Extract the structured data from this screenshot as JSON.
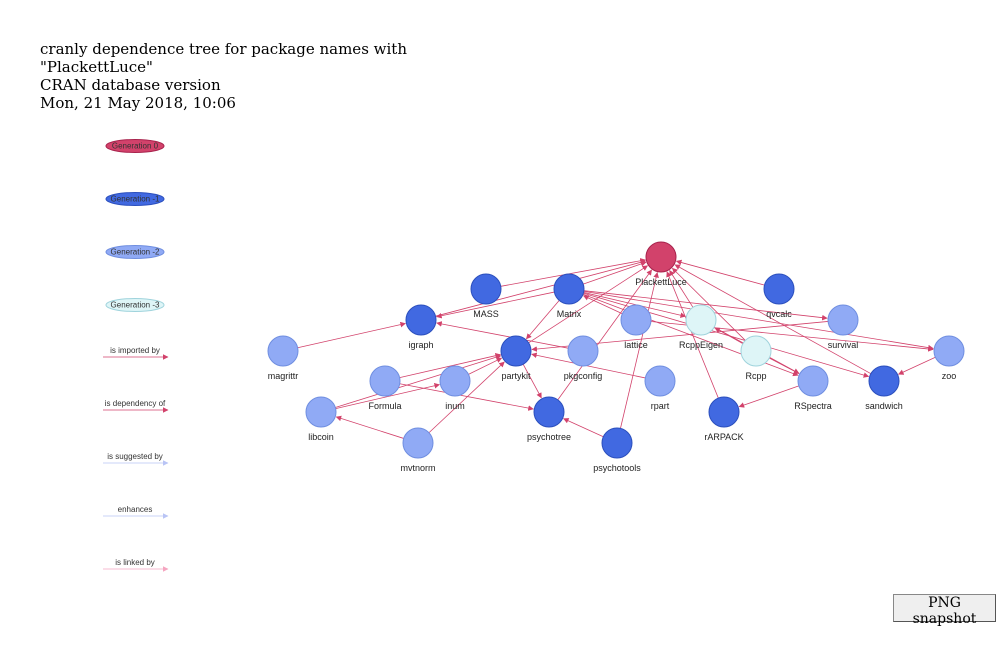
{
  "title": {
    "line1": "cranly dependence tree for package names with",
    "line2": "\"PlackettLuce\"",
    "line3": "CRAN database version",
    "line4": "Mon, 21 May 2018, 10:06"
  },
  "colors": {
    "generation_0": "#d2426b",
    "generation_1": "#4169e1",
    "generation_2": "#90aaf5",
    "generation_3": "#def5f7",
    "imported_by": "#d2426b",
    "dependency_of": "#d2426b",
    "suggested_by": "#b9c4f5",
    "enhances": "#b9c4f5",
    "linked_by": "#f5a5c0"
  },
  "legend": {
    "nodes": [
      {
        "label": "Generation 0",
        "generation": 0
      },
      {
        "label": "Generation -1",
        "generation": 1
      },
      {
        "label": "Generation -2",
        "generation": 2
      },
      {
        "label": "Generation -3",
        "generation": 3
      }
    ],
    "edges": [
      {
        "label": "is imported by",
        "type": "imported_by"
      },
      {
        "label": "is dependency of",
        "type": "dependency_of"
      },
      {
        "label": "is suggested by",
        "type": "suggested_by"
      },
      {
        "label": "enhances",
        "type": "enhances"
      },
      {
        "label": "is linked by",
        "type": "linked_by"
      }
    ]
  },
  "nodes": [
    {
      "id": "PlackettLuce",
      "label": "PlackettLuce",
      "generation": 0
    },
    {
      "id": "MASS",
      "label": "MASS",
      "generation": 1
    },
    {
      "id": "Matrix",
      "label": "Matrix",
      "generation": 1
    },
    {
      "id": "qvcalc",
      "label": "qvcalc",
      "generation": 1
    },
    {
      "id": "igraph",
      "label": "igraph",
      "generation": 1
    },
    {
      "id": "partykit",
      "label": "partykit",
      "generation": 1
    },
    {
      "id": "psychotree",
      "label": "psychotree",
      "generation": 1
    },
    {
      "id": "psychotools",
      "label": "psychotools",
      "generation": 1
    },
    {
      "id": "rARPACK",
      "label": "rARPACK",
      "generation": 1
    },
    {
      "id": "sandwich",
      "label": "sandwich",
      "generation": 1
    },
    {
      "id": "lattice",
      "label": "lattice",
      "generation": 2
    },
    {
      "id": "survival",
      "label": "survival",
      "generation": 2
    },
    {
      "id": "magrittr",
      "label": "magrittr",
      "generation": 2
    },
    {
      "id": "pkgconfig",
      "label": "pkgconfig",
      "generation": 2
    },
    {
      "id": "Formula",
      "label": "Formula",
      "generation": 2
    },
    {
      "id": "inum",
      "label": "inum",
      "generation": 2
    },
    {
      "id": "libcoin",
      "label": "libcoin",
      "generation": 2
    },
    {
      "id": "mvtnorm",
      "label": "mvtnorm",
      "generation": 2
    },
    {
      "id": "rpart",
      "label": "rpart",
      "generation": 2
    },
    {
      "id": "RSpectra",
      "label": "RSpectra",
      "generation": 2
    },
    {
      "id": "zoo",
      "label": "zoo",
      "generation": 2
    },
    {
      "id": "RcppEigen",
      "label": "RcppEigen",
      "generation": 3
    },
    {
      "id": "Rcpp",
      "label": "Rcpp",
      "generation": 3
    }
  ],
  "edges": [
    {
      "from": "MASS",
      "to": "PlackettLuce"
    },
    {
      "from": "Matrix",
      "to": "PlackettLuce"
    },
    {
      "from": "qvcalc",
      "to": "PlackettLuce"
    },
    {
      "from": "igraph",
      "to": "PlackettLuce"
    },
    {
      "from": "partykit",
      "to": "PlackettLuce"
    },
    {
      "from": "psychotree",
      "to": "PlackettLuce"
    },
    {
      "from": "psychotools",
      "to": "PlackettLuce"
    },
    {
      "from": "rARPACK",
      "to": "PlackettLuce"
    },
    {
      "from": "sandwich",
      "to": "PlackettLuce"
    },
    {
      "from": "RcppEigen",
      "to": "PlackettLuce"
    },
    {
      "from": "Rcpp",
      "to": "PlackettLuce"
    },
    {
      "from": "magrittr",
      "to": "igraph"
    },
    {
      "from": "Matrix",
      "to": "igraph"
    },
    {
      "from": "pkgconfig",
      "to": "igraph"
    },
    {
      "from": "Matrix",
      "to": "RcppEigen"
    },
    {
      "from": "Matrix",
      "to": "survival"
    },
    {
      "from": "Matrix",
      "to": "partykit"
    },
    {
      "from": "Matrix",
      "to": "RSpectra"
    },
    {
      "from": "Matrix",
      "to": "zoo"
    },
    {
      "from": "Matrix",
      "to": "sandwich"
    },
    {
      "from": "lattice",
      "to": "Matrix"
    },
    {
      "from": "lattice",
      "to": "zoo"
    },
    {
      "from": "survival",
      "to": "partykit"
    },
    {
      "from": "Formula",
      "to": "partykit"
    },
    {
      "from": "inum",
      "to": "partykit"
    },
    {
      "from": "libcoin",
      "to": "partykit"
    },
    {
      "from": "mvtnorm",
      "to": "partykit"
    },
    {
      "from": "rpart",
      "to": "partykit"
    },
    {
      "from": "partykit",
      "to": "psychotree"
    },
    {
      "from": "Formula",
      "to": "psychotree"
    },
    {
      "from": "psychotools",
      "to": "psychotree"
    },
    {
      "from": "libcoin",
      "to": "inum"
    },
    {
      "from": "mvtnorm",
      "to": "libcoin"
    },
    {
      "from": "RcppEigen",
      "to": "RSpectra"
    },
    {
      "from": "Rcpp",
      "to": "RSpectra"
    },
    {
      "from": "Rcpp",
      "to": "RcppEigen"
    },
    {
      "from": "RSpectra",
      "to": "rARPACK"
    },
    {
      "from": "zoo",
      "to": "sandwich"
    }
  ],
  "button": {
    "label": "PNG snapshot"
  }
}
